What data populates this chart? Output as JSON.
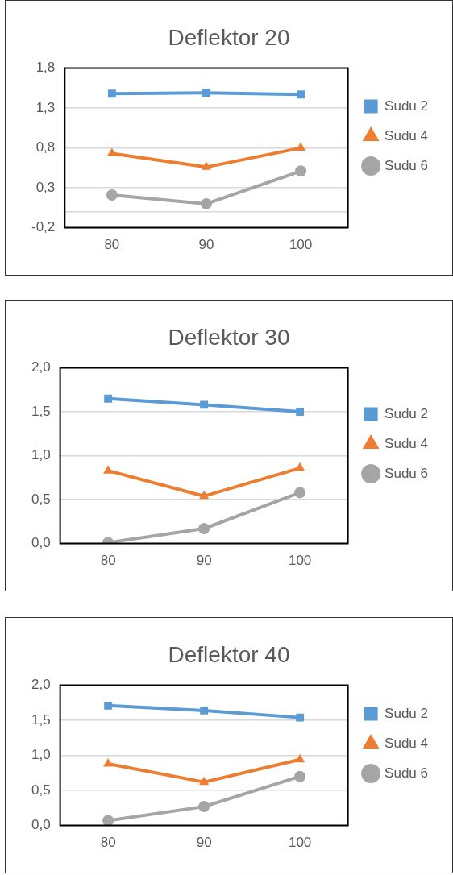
{
  "chart_data": [
    {
      "type": "line",
      "title": "Deflektor 20",
      "categories": [
        "80",
        "90",
        "100"
      ],
      "series": [
        {
          "name": "Sudu 2",
          "color": "#5b9bd5",
          "marker": "square",
          "values": [
            1.48,
            1.49,
            1.47
          ]
        },
        {
          "name": "Sudu 4",
          "color": "#ed7d31",
          "marker": "triangle",
          "values": [
            0.73,
            0.56,
            0.8
          ]
        },
        {
          "name": "Sudu 6",
          "color": "#a5a5a5",
          "marker": "circle",
          "values": [
            0.21,
            0.1,
            0.51
          ]
        }
      ],
      "ylim": [
        -0.2,
        1.8
      ],
      "yticks": [
        {
          "value": -0.2,
          "label": "-0,2"
        },
        {
          "value": 0.3,
          "label": "0,3"
        },
        {
          "value": 0.8,
          "label": "0,8"
        },
        {
          "value": 1.3,
          "label": "1,3"
        },
        {
          "value": 1.8,
          "label": "1,8"
        }
      ],
      "ref_lines": [
        {
          "axis": "y",
          "value": 0,
          "color": "#d9d9d9"
        }
      ],
      "grid": "y",
      "legend": "right",
      "line_style": "solid"
    },
    {
      "type": "line",
      "title": "Deflektor 30",
      "categories": [
        "80",
        "90",
        "100"
      ],
      "series": [
        {
          "name": "Sudu 2",
          "color": "#5b9bd5",
          "marker": "square",
          "values": [
            1.65,
            1.58,
            1.5
          ]
        },
        {
          "name": "Sudu 4",
          "color": "#ed7d31",
          "marker": "triangle",
          "values": [
            0.83,
            0.54,
            0.86
          ]
        },
        {
          "name": "Sudu 6",
          "color": "#a5a5a5",
          "marker": "circle",
          "values": [
            0.01,
            0.17,
            0.58
          ]
        }
      ],
      "ylim": [
        0,
        2
      ],
      "yticks": [
        {
          "value": 0,
          "label": "0,0"
        },
        {
          "value": 0.5,
          "label": "0,5"
        },
        {
          "value": 1,
          "label": "1,0"
        },
        {
          "value": 1.5,
          "label": "1,5"
        },
        {
          "value": 2,
          "label": "2,0"
        }
      ],
      "grid": "y",
      "legend": "right",
      "line_style": "solid"
    },
    {
      "type": "line",
      "title": "Deflektor 40",
      "categories": [
        "80",
        "90",
        "100"
      ],
      "series": [
        {
          "name": "Sudu 2",
          "color": "#5b9bd5",
          "marker": "square",
          "values": [
            1.71,
            1.64,
            1.54
          ]
        },
        {
          "name": "Sudu 4",
          "color": "#ed7d31",
          "marker": "triangle",
          "values": [
            0.88,
            0.62,
            0.94
          ]
        },
        {
          "name": "Sudu 6",
          "color": "#a5a5a5",
          "marker": "circle",
          "values": [
            0.07,
            0.27,
            0.7
          ]
        }
      ],
      "ylim": [
        0,
        2
      ],
      "yticks": [
        {
          "value": 0,
          "label": "0,0"
        },
        {
          "value": 0.5,
          "label": "0,5"
        },
        {
          "value": 1,
          "label": "1,0"
        },
        {
          "value": 1.5,
          "label": "1,5"
        },
        {
          "value": 2,
          "label": "2,0"
        }
      ],
      "grid": "y",
      "legend": "right",
      "line_style": "solid"
    }
  ]
}
